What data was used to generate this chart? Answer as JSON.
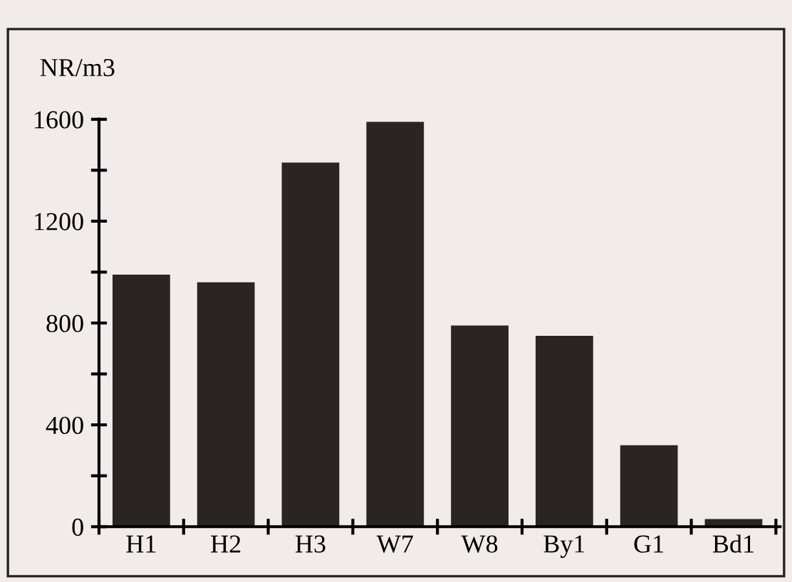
{
  "chart_data": {
    "type": "bar",
    "ylabel": "NR/m3",
    "categories": [
      "H1",
      "H2",
      "H3",
      "W7",
      "W8",
      "By1",
      "G1",
      "Bd1"
    ],
    "values": [
      990,
      960,
      1430,
      1590,
      790,
      750,
      320,
      30
    ],
    "color": "#2b2424",
    "ylim": [
      0,
      1600
    ],
    "yticks": [
      0,
      {
        "value": 200,
        "label": null
      },
      400,
      {
        "value": 600,
        "label": null
      },
      800,
      {
        "value": 1000,
        "label": null
      },
      1200,
      {
        "value": 1400,
        "label": null
      },
      1600
    ],
    "grid": false
  }
}
